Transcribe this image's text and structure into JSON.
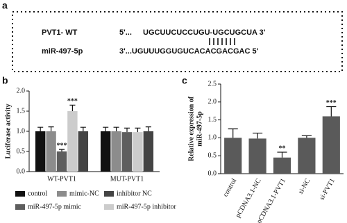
{
  "panel_labels": [
    "a",
    "b",
    "c"
  ],
  "panel_a": {
    "rows": [
      {
        "name": "PVT1- WT",
        "prefix": "5'...",
        "sequence": "UGCUUCUCCUGU-UGCUGCUA 3'"
      },
      {
        "name": "miR-497-5p",
        "sequence": "3'...UGUUUGGUGUCACACGACGAC 5'"
      }
    ]
  },
  "chart_data": [
    {
      "type": "bar",
      "ylabel": [
        "Luciferase activity"
      ],
      "categories": [
        "WT-PVT1",
        "MUT-PVT1"
      ],
      "series": [
        {
          "name": "control",
          "color": "#111111",
          "values": [
            1.0,
            1.0
          ],
          "errors": [
            0.1,
            0.1
          ],
          "annotations": [
            null,
            null
          ]
        },
        {
          "name": "mimic-NC",
          "color": "#8c8c8c",
          "values": [
            1.0,
            1.0
          ],
          "errors": [
            0.11,
            0.1
          ],
          "annotations": [
            null,
            null
          ]
        },
        {
          "name": "miR-497-5p mimic",
          "color": "#5e5e5e",
          "values": [
            0.5,
            0.98
          ],
          "errors": [
            0.05,
            0.1
          ],
          "annotations": [
            "***",
            null
          ]
        },
        {
          "name": "miR-497-5p inhibitor",
          "color": "#cccccc",
          "values": [
            1.5,
            0.98
          ],
          "errors": [
            0.15,
            0.1
          ],
          "annotations": [
            "***",
            null
          ]
        },
        {
          "name": "inhibitor NC",
          "color": "#444444",
          "values": [
            1.0,
            1.0
          ],
          "errors": [
            0.1,
            0.11
          ],
          "annotations": [
            null,
            null
          ]
        }
      ],
      "ylim": [
        0,
        2.0
      ],
      "yticks": [
        {
          "value": 0,
          "label": "0.0"
        },
        0.5,
        {
          "value": 1.0,
          "label": "1.0"
        },
        1.5,
        {
          "value": 2.0,
          "label": "2.0"
        }
      ]
    },
    {
      "type": "bar",
      "ylabel": [
        "Relative expression of",
        "miR-497-5p"
      ],
      "categories": [
        "control",
        "pCDNA3.1-NC",
        "pCDNA3.1-PVT1",
        "si-NC",
        "si-PVT1"
      ],
      "color": "#5a5a5a",
      "values": [
        1.0,
        0.98,
        0.45,
        1.0,
        1.6
      ],
      "errors": [
        0.25,
        0.15,
        0.15,
        0.06,
        0.27
      ],
      "annotations": [
        null,
        null,
        "**",
        null,
        "***"
      ],
      "ylim": [
        0,
        2.5
      ],
      "yticks": [
        {
          "value": 0,
          "label": "0.0"
        },
        0.5,
        {
          "value": 1.0,
          "label": "1.0"
        },
        1.5,
        {
          "value": 2.0,
          "label": "2.0"
        },
        2.5
      ]
    }
  ]
}
